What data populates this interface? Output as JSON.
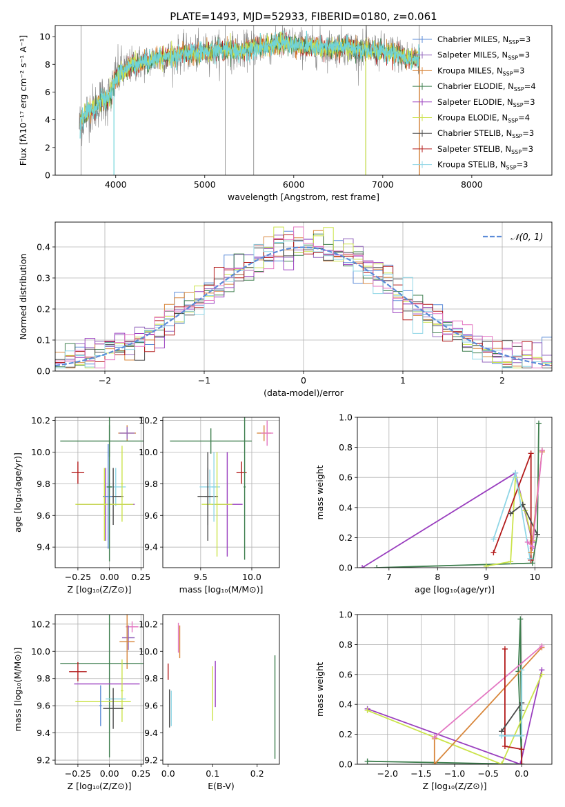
{
  "figure_title": "PLATE=1493, MJD=52933, FIBERID=0180, z=0.061",
  "colors": {
    "Chabrier MILES": "#5b8bd8",
    "Salpeter MILES": "#9467bd",
    "Kroupa MILES": "#d8863b",
    "Chabrier ELODIE": "#3f7f4f",
    "Salpeter ELODIE": "#9a3fbf",
    "Kroupa ELODIE": "#cbe34a",
    "Chabrier STELIB": "#4a4a4a",
    "Salpeter STELIB": "#b31b1b",
    "Kroupa STELIB": "#8fd6e6",
    "data": "#808080",
    "cyan_model": "#6fd3d8",
    "normal": "#5b8bd8",
    "pink": "#e377c2"
  },
  "chart_data": [
    {
      "id": "spectrum",
      "type": "line",
      "title": "PLATE=1493, MJD=52933, FIBERID=0180, z=0.061",
      "xlabel": "wavelength [Angstrom, rest frame]",
      "ylabel": "Flux [fλ10⁻¹⁷ erg cm⁻² s⁻¹ A⁻¹]",
      "xlim": [
        3320,
        8900
      ],
      "ylim": [
        0,
        10.8
      ],
      "xticks": [
        4000,
        5000,
        6000,
        7000,
        8000
      ],
      "yticks": [
        0,
        2,
        4,
        6,
        8,
        10
      ],
      "continuum": {
        "x": [
          3590,
          3650,
          3700,
          3750,
          3800,
          3850,
          3900,
          3950,
          4000,
          4050,
          4100,
          4150,
          4200,
          4300,
          4400,
          4500,
          4600,
          4700,
          4800,
          4900,
          5000,
          5100,
          5200,
          5300,
          5400,
          5500,
          5600,
          5700,
          5800,
          5900,
          6000,
          6100,
          6200,
          6300,
          6400,
          6500,
          6600,
          6700,
          6800,
          6900,
          7000,
          7100,
          7200,
          7300,
          7420
        ],
        "y": [
          3.6,
          4.3,
          4.7,
          4.8,
          5.2,
          5.5,
          5.3,
          6.0,
          7.0,
          7.4,
          7.6,
          7.8,
          8.0,
          8.1,
          8.3,
          8.5,
          8.5,
          8.7,
          8.8,
          8.8,
          8.9,
          9.0,
          9.0,
          9.0,
          8.9,
          9.1,
          9.3,
          9.3,
          9.4,
          9.6,
          9.4,
          9.3,
          9.2,
          9.2,
          9.2,
          9.2,
          9.3,
          9.1,
          9.0,
          9.0,
          8.9,
          8.9,
          8.7,
          8.4,
          8.4
        ]
      },
      "vlines": [
        3610,
        5230,
        5550,
        6810,
        7410
      ],
      "legend": [
        {
          "label": "Chabrier MILES, N",
          "sub": "SSP",
          "suffix": "=3",
          "color": "Chabrier MILES"
        },
        {
          "label": "Salpeter MILES, N",
          "sub": "SSP",
          "suffix": "=3",
          "color": "Salpeter MILES"
        },
        {
          "label": "Kroupa MILES, N",
          "sub": "SSP",
          "suffix": "=3",
          "color": "Kroupa MILES"
        },
        {
          "label": "Chabrier ELODIE, N",
          "sub": "SSP",
          "suffix": "=4",
          "color": "Chabrier ELODIE"
        },
        {
          "label": "Salpeter ELODIE, N",
          "sub": "SSP",
          "suffix": "=3",
          "color": "Salpeter ELODIE"
        },
        {
          "label": "Kroupa ELODIE, N",
          "sub": "SSP",
          "suffix": "=4",
          "color": "Kroupa ELODIE"
        },
        {
          "label": "Chabrier STELIB, N",
          "sub": "SSP",
          "suffix": "=3",
          "color": "Chabrier STELIB"
        },
        {
          "label": "Salpeter STELIB, N",
          "sub": "SSP",
          "suffix": "=3",
          "color": "Salpeter STELIB"
        },
        {
          "label": "Kroupa STELIB, N",
          "sub": "SSP",
          "suffix": "=3",
          "color": "Kroupa STELIB"
        }
      ]
    },
    {
      "id": "residuals",
      "type": "histogram",
      "xlabel": "(data-model)/error",
      "ylabel": "Normed distribution",
      "xlim": [
        -2.5,
        2.5
      ],
      "ylim": [
        0,
        0.48
      ],
      "xticks": [
        -2,
        -1,
        0,
        1,
        2
      ],
      "yticks": [
        0.0,
        0.1,
        0.2,
        0.3,
        0.4
      ],
      "grid": true,
      "bin_width": 0.1,
      "legend": "$\\mathcal{N}(0,1)$",
      "legend_label": "𝒩(0, 1)",
      "series_colors": [
        "Chabrier MILES",
        "Salpeter MILES",
        "Kroupa MILES",
        "Chabrier ELODIE",
        "Salpeter ELODIE",
        "Kroupa ELODIE",
        "Chabrier STELIB",
        "Salpeter STELIB",
        "Kroupa STELIB",
        "pink"
      ]
    },
    {
      "id": "Z-age",
      "type": "errorbar",
      "xlabel": "Z [log₁₀(Z/Z⊙)]",
      "ylabel": "age  [log₁₀(age/yr)]",
      "xlim": [
        -0.43,
        0.27
      ],
      "ylim": [
        9.27,
        10.22
      ],
      "xticks": [
        -0.25,
        0.0,
        0.25
      ],
      "xticklabels": [
        "−0.25",
        "0.00",
        "0.25"
      ],
      "yticks": [
        9.4,
        9.6,
        9.8,
        10.0,
        10.2
      ],
      "grid": true,
      "points": [
        {
          "x": 0.14,
          "y": 10.12,
          "xerr": 0.07,
          "yerr": 0.05,
          "color": "Kroupa MILES"
        },
        {
          "x": 0.14,
          "y": 10.12,
          "xerr": 0.06,
          "yerr": 0.04,
          "color": "Salpeter MILES"
        },
        {
          "x": 0.0,
          "y": 10.07,
          "xerr": 0.39,
          "yerr": 0.1,
          "color": "Chabrier ELODIE"
        },
        {
          "x": -0.25,
          "y": 9.87,
          "xerr": 0.05,
          "yerr": 0.07,
          "color": "Salpeter STELIB"
        },
        {
          "x": 0.05,
          "y": 9.78,
          "xerr": 0.08,
          "yerr": 0.12,
          "color": "Kroupa STELIB"
        },
        {
          "x": 0.03,
          "y": 9.72,
          "xerr": 0.08,
          "yerr": 0.18,
          "color": "Chabrier STELIB"
        },
        {
          "x": -0.03,
          "y": 9.67,
          "xerr": 0.23,
          "yerr": 0.23,
          "color": "Salpeter ELODIE"
        },
        {
          "x": -0.04,
          "y": 9.67,
          "xerr": 0.23,
          "yerr": 0.23,
          "color": "Kroupa ELODIE"
        },
        {
          "x": -0.01,
          "y": 9.72,
          "xerr": 0.03,
          "yerr": 0.33,
          "color": "Chabrier MILES"
        },
        {
          "x": 0.0,
          "y": 9.78,
          "xerr": 0.02,
          "yerr": 0.47,
          "color": "Chabrier ELODIE"
        },
        {
          "x": 0.1,
          "y": 9.8,
          "xerr": 0.01,
          "yerr": 0.24,
          "color": "Kroupa ELODIE"
        }
      ]
    },
    {
      "id": "mass-age",
      "type": "errorbar",
      "xlabel": "mass [log₁₀(M/M⊙)]",
      "ylabel": "",
      "xlim": [
        9.13,
        10.27
      ],
      "ylim": [
        9.27,
        10.22
      ],
      "xticks": [
        9.5,
        10.0
      ],
      "xticklabels": [
        "9.5",
        "10.0"
      ],
      "yticks": [
        9.4,
        9.6,
        9.8,
        10.0,
        10.2
      ],
      "grid": true,
      "points": [
        {
          "x": 10.12,
          "y": 10.12,
          "xerr": 0.07,
          "yerr": 0.05,
          "color": "Kroupa MILES"
        },
        {
          "x": 10.15,
          "y": 10.12,
          "xerr": 0.06,
          "yerr": 0.08,
          "color": "pink"
        },
        {
          "x": 9.6,
          "y": 10.07,
          "xerr": 0.4,
          "yerr": 0.08,
          "color": "Chabrier ELODIE"
        },
        {
          "x": 9.9,
          "y": 9.87,
          "xerr": 0.05,
          "yerr": 0.07,
          "color": "Salpeter STELIB"
        },
        {
          "x": 9.59,
          "y": 9.78,
          "xerr": 0.1,
          "yerr": 0.11,
          "color": "Kroupa STELIB"
        },
        {
          "x": 9.57,
          "y": 9.72,
          "xerr": 0.1,
          "yerr": 0.18,
          "color": "Chabrier STELIB"
        },
        {
          "x": 9.76,
          "y": 9.67,
          "xerr": 0.15,
          "yerr": 0.33,
          "color": "Salpeter ELODIE"
        },
        {
          "x": 9.66,
          "y": 9.67,
          "xerr": 0.15,
          "yerr": 0.33,
          "color": "Kroupa ELODIE"
        },
        {
          "x": 9.57,
          "y": 9.72,
          "xerr": 0.03,
          "yerr": 0.28,
          "color": "Chabrier STELIB"
        },
        {
          "x": 9.93,
          "y": 9.78,
          "xerr": 0.01,
          "yerr": 0.46,
          "color": "Chabrier ELODIE"
        },
        {
          "x": 9.63,
          "y": 9.78,
          "xerr": 0.02,
          "yerr": 0.22,
          "color": "Kroupa STELIB"
        }
      ]
    },
    {
      "id": "age-weight",
      "type": "line",
      "xlabel": "age  [log₁₀(age/yr)]",
      "ylabel": "mass weight",
      "xlim": [
        6.35,
        10.35
      ],
      "ylim": [
        0,
        1.0
      ],
      "xticks": [
        7,
        8,
        9,
        10
      ],
      "yticks": [
        0.0,
        0.2,
        0.4,
        0.6,
        0.8,
        1.0
      ],
      "grid": true,
      "series": [
        {
          "color": "Chabrier ELODIE",
          "x": [
            6.75,
            9.95,
            10.05,
            10.08
          ],
          "y": [
            0.0,
            0.03,
            0.22,
            0.96
          ]
        },
        {
          "color": "Salpeter ELODIE",
          "x": [
            6.45,
            9.6,
            9.95,
            9.95
          ],
          "y": [
            0.0,
            0.63,
            0.17,
            0.13
          ]
        },
        {
          "color": "Kroupa ELODIE",
          "x": [
            9.0,
            9.5,
            9.6,
            9.8,
            9.95
          ],
          "y": [
            0.01,
            0.04,
            0.6,
            0.38,
            0.18
          ]
        },
        {
          "color": "Salpeter STELIB",
          "x": [
            9.15,
            9.92,
            9.92
          ],
          "y": [
            0.1,
            0.76,
            0.05
          ]
        },
        {
          "color": "Chabrier STELIB",
          "x": [
            9.5,
            9.75,
            10.05
          ],
          "y": [
            0.36,
            0.42,
            0.22
          ]
        },
        {
          "color": "Kroupa STELIB",
          "x": [
            9.15,
            9.6,
            9.9
          ],
          "y": [
            0.19,
            0.63,
            0.06
          ]
        },
        {
          "color": "Kroupa MILES",
          "x": [
            9.92,
            10.15,
            10.15
          ],
          "y": [
            0.1,
            0.78,
            0.77
          ]
        },
        {
          "color": "pink",
          "x": [
            9.85,
            9.95,
            10.15
          ],
          "y": [
            0.17,
            0.14,
            0.78
          ]
        }
      ]
    },
    {
      "id": "Z-mass",
      "type": "errorbar",
      "xlabel": "Z [log₁₀(Z/Z⊙)]",
      "ylabel": "mass [log₁₀(M/M⊙)]",
      "xlim": [
        -0.43,
        0.27
      ],
      "ylim": [
        9.17,
        10.27
      ],
      "xticks": [
        -0.25,
        0.0,
        0.25
      ],
      "xticklabels": [
        "−0.25",
        "0.00",
        "0.25"
      ],
      "yticks": [
        9.2,
        9.4,
        9.6,
        9.8,
        10.0,
        10.2
      ],
      "grid": true,
      "points": [
        {
          "x": 0.18,
          "y": 10.18,
          "xerr": 0.05,
          "yerr": 0.04,
          "color": "pink"
        },
        {
          "x": 0.15,
          "y": 10.1,
          "xerr": 0.05,
          "yerr": 0.09,
          "color": "Salpeter MILES"
        },
        {
          "x": 0.14,
          "y": 10.07,
          "xerr": 0.06,
          "yerr": 0.2,
          "color": "Kroupa MILES"
        },
        {
          "x": 0.0,
          "y": 9.91,
          "xerr": 0.39,
          "yerr": 0.69,
          "color": "Chabrier ELODIE"
        },
        {
          "x": -0.25,
          "y": 9.85,
          "xerr": 0.07,
          "yerr": 0.07,
          "color": "Salpeter STELIB"
        },
        {
          "x": -0.02,
          "y": 9.76,
          "xerr": 0.26,
          "yerr": 0.0,
          "color": "Salpeter ELODIE"
        },
        {
          "x": 0.1,
          "y": 9.71,
          "xerr": 0.01,
          "yerr": 0.23,
          "color": "Kroupa ELODIE"
        },
        {
          "x": 0.05,
          "y": 9.65,
          "xerr": 0.08,
          "yerr": 0.0,
          "color": "Kroupa STELIB"
        },
        {
          "x": -0.05,
          "y": 9.63,
          "xerr": 0.22,
          "yerr": 0.0,
          "color": "Kroupa ELODIE"
        },
        {
          "x": 0.03,
          "y": 9.58,
          "xerr": 0.08,
          "yerr": 0.15,
          "color": "Chabrier STELIB"
        },
        {
          "x": -0.07,
          "y": 9.6,
          "xerr": 0.01,
          "yerr": 0.15,
          "color": "Chabrier MILES"
        }
      ]
    },
    {
      "id": "ebv-mass",
      "type": "errorbar",
      "xlabel": "E(B-V)",
      "ylabel": "",
      "xlim": [
        -0.012,
        0.25
      ],
      "ylim": [
        9.17,
        10.27
      ],
      "xticks": [
        0.0,
        0.1,
        0.2
      ],
      "xticklabels": [
        "0.0",
        "0.1",
        "0.2"
      ],
      "yticks": [
        9.2,
        9.4,
        9.6,
        9.8,
        10.0,
        10.2
      ],
      "grid": false,
      "points": [
        {
          "x": 0.023,
          "y": 10.1,
          "xerr": 0.0,
          "yerr": 0.11,
          "color": "pink"
        },
        {
          "x": 0.026,
          "y": 10.07,
          "xerr": 0.0,
          "yerr": 0.12,
          "color": "Kroupa MILES"
        },
        {
          "x": 0.0,
          "y": 9.85,
          "xerr": 0.0,
          "yerr": 0.06,
          "color": "Salpeter STELIB"
        },
        {
          "x": 0.003,
          "y": 9.58,
          "xerr": 0.0,
          "yerr": 0.14,
          "color": "Chabrier STELIB"
        },
        {
          "x": 0.007,
          "y": 9.58,
          "xerr": 0.0,
          "yerr": 0.13,
          "color": "Kroupa STELIB"
        },
        {
          "x": 0.106,
          "y": 9.76,
          "xerr": 0.0,
          "yerr": 0.17,
          "color": "Salpeter ELODIE"
        },
        {
          "x": 0.1,
          "y": 9.69,
          "xerr": 0.0,
          "yerr": 0.2,
          "color": "Kroupa ELODIE"
        },
        {
          "x": 0.24,
          "y": 9.59,
          "xerr": 0.0,
          "yerr": 0.38,
          "color": "Chabrier ELODIE"
        }
      ]
    },
    {
      "id": "Z-weight",
      "type": "line",
      "xlabel": "Z [log₁₀(Z/Z⊙)]",
      "ylabel": "mass weight",
      "xlim": [
        -2.45,
        0.45
      ],
      "ylim": [
        0,
        1.0
      ],
      "xticks": [
        -2.0,
        -1.5,
        -1.0,
        -0.5,
        0.0
      ],
      "xticklabels": [
        "−2.0",
        "−1.5",
        "−1.0",
        "−0.5",
        "0.0"
      ],
      "yticks": [
        0.0,
        0.2,
        0.4,
        0.6,
        0.8,
        1.0
      ],
      "grid": true,
      "series": [
        {
          "color": "Chabrier ELODIE",
          "x": [
            -2.3,
            0.0,
            -0.02,
            -0.05,
            0.0
          ],
          "y": [
            0.02,
            0.0,
            0.97,
            0.62,
            0.0
          ]
        },
        {
          "color": "Salpeter ELODIE",
          "x": [
            -2.3,
            -0.02,
            0.3
          ],
          "y": [
            0.37,
            0.0,
            0.63
          ]
        },
        {
          "color": "Kroupa ELODIE",
          "x": [
            -2.3,
            -0.3,
            0.3
          ],
          "y": [
            0.36,
            0.0,
            0.6
          ]
        },
        {
          "color": "Kroupa MILES",
          "x": [
            -1.3,
            -1.3,
            0.3
          ],
          "y": [
            0.17,
            0.0,
            0.78
          ]
        },
        {
          "color": "pink",
          "x": [
            -1.3,
            0.3
          ],
          "y": [
            0.18,
            0.79
          ]
        },
        {
          "color": "Salpeter STELIB",
          "x": [
            -0.25,
            -0.25,
            0.0,
            0.0
          ],
          "y": [
            0.77,
            0.12,
            0.1,
            0.0
          ]
        },
        {
          "color": "Chabrier STELIB",
          "x": [
            -0.3,
            0.0,
            0.0
          ],
          "y": [
            0.22,
            0.41,
            0.36
          ]
        },
        {
          "color": "Kroupa STELIB",
          "x": [
            -0.3,
            0.0,
            0.0
          ],
          "y": [
            0.19,
            0.19,
            0.63
          ]
        }
      ]
    }
  ]
}
